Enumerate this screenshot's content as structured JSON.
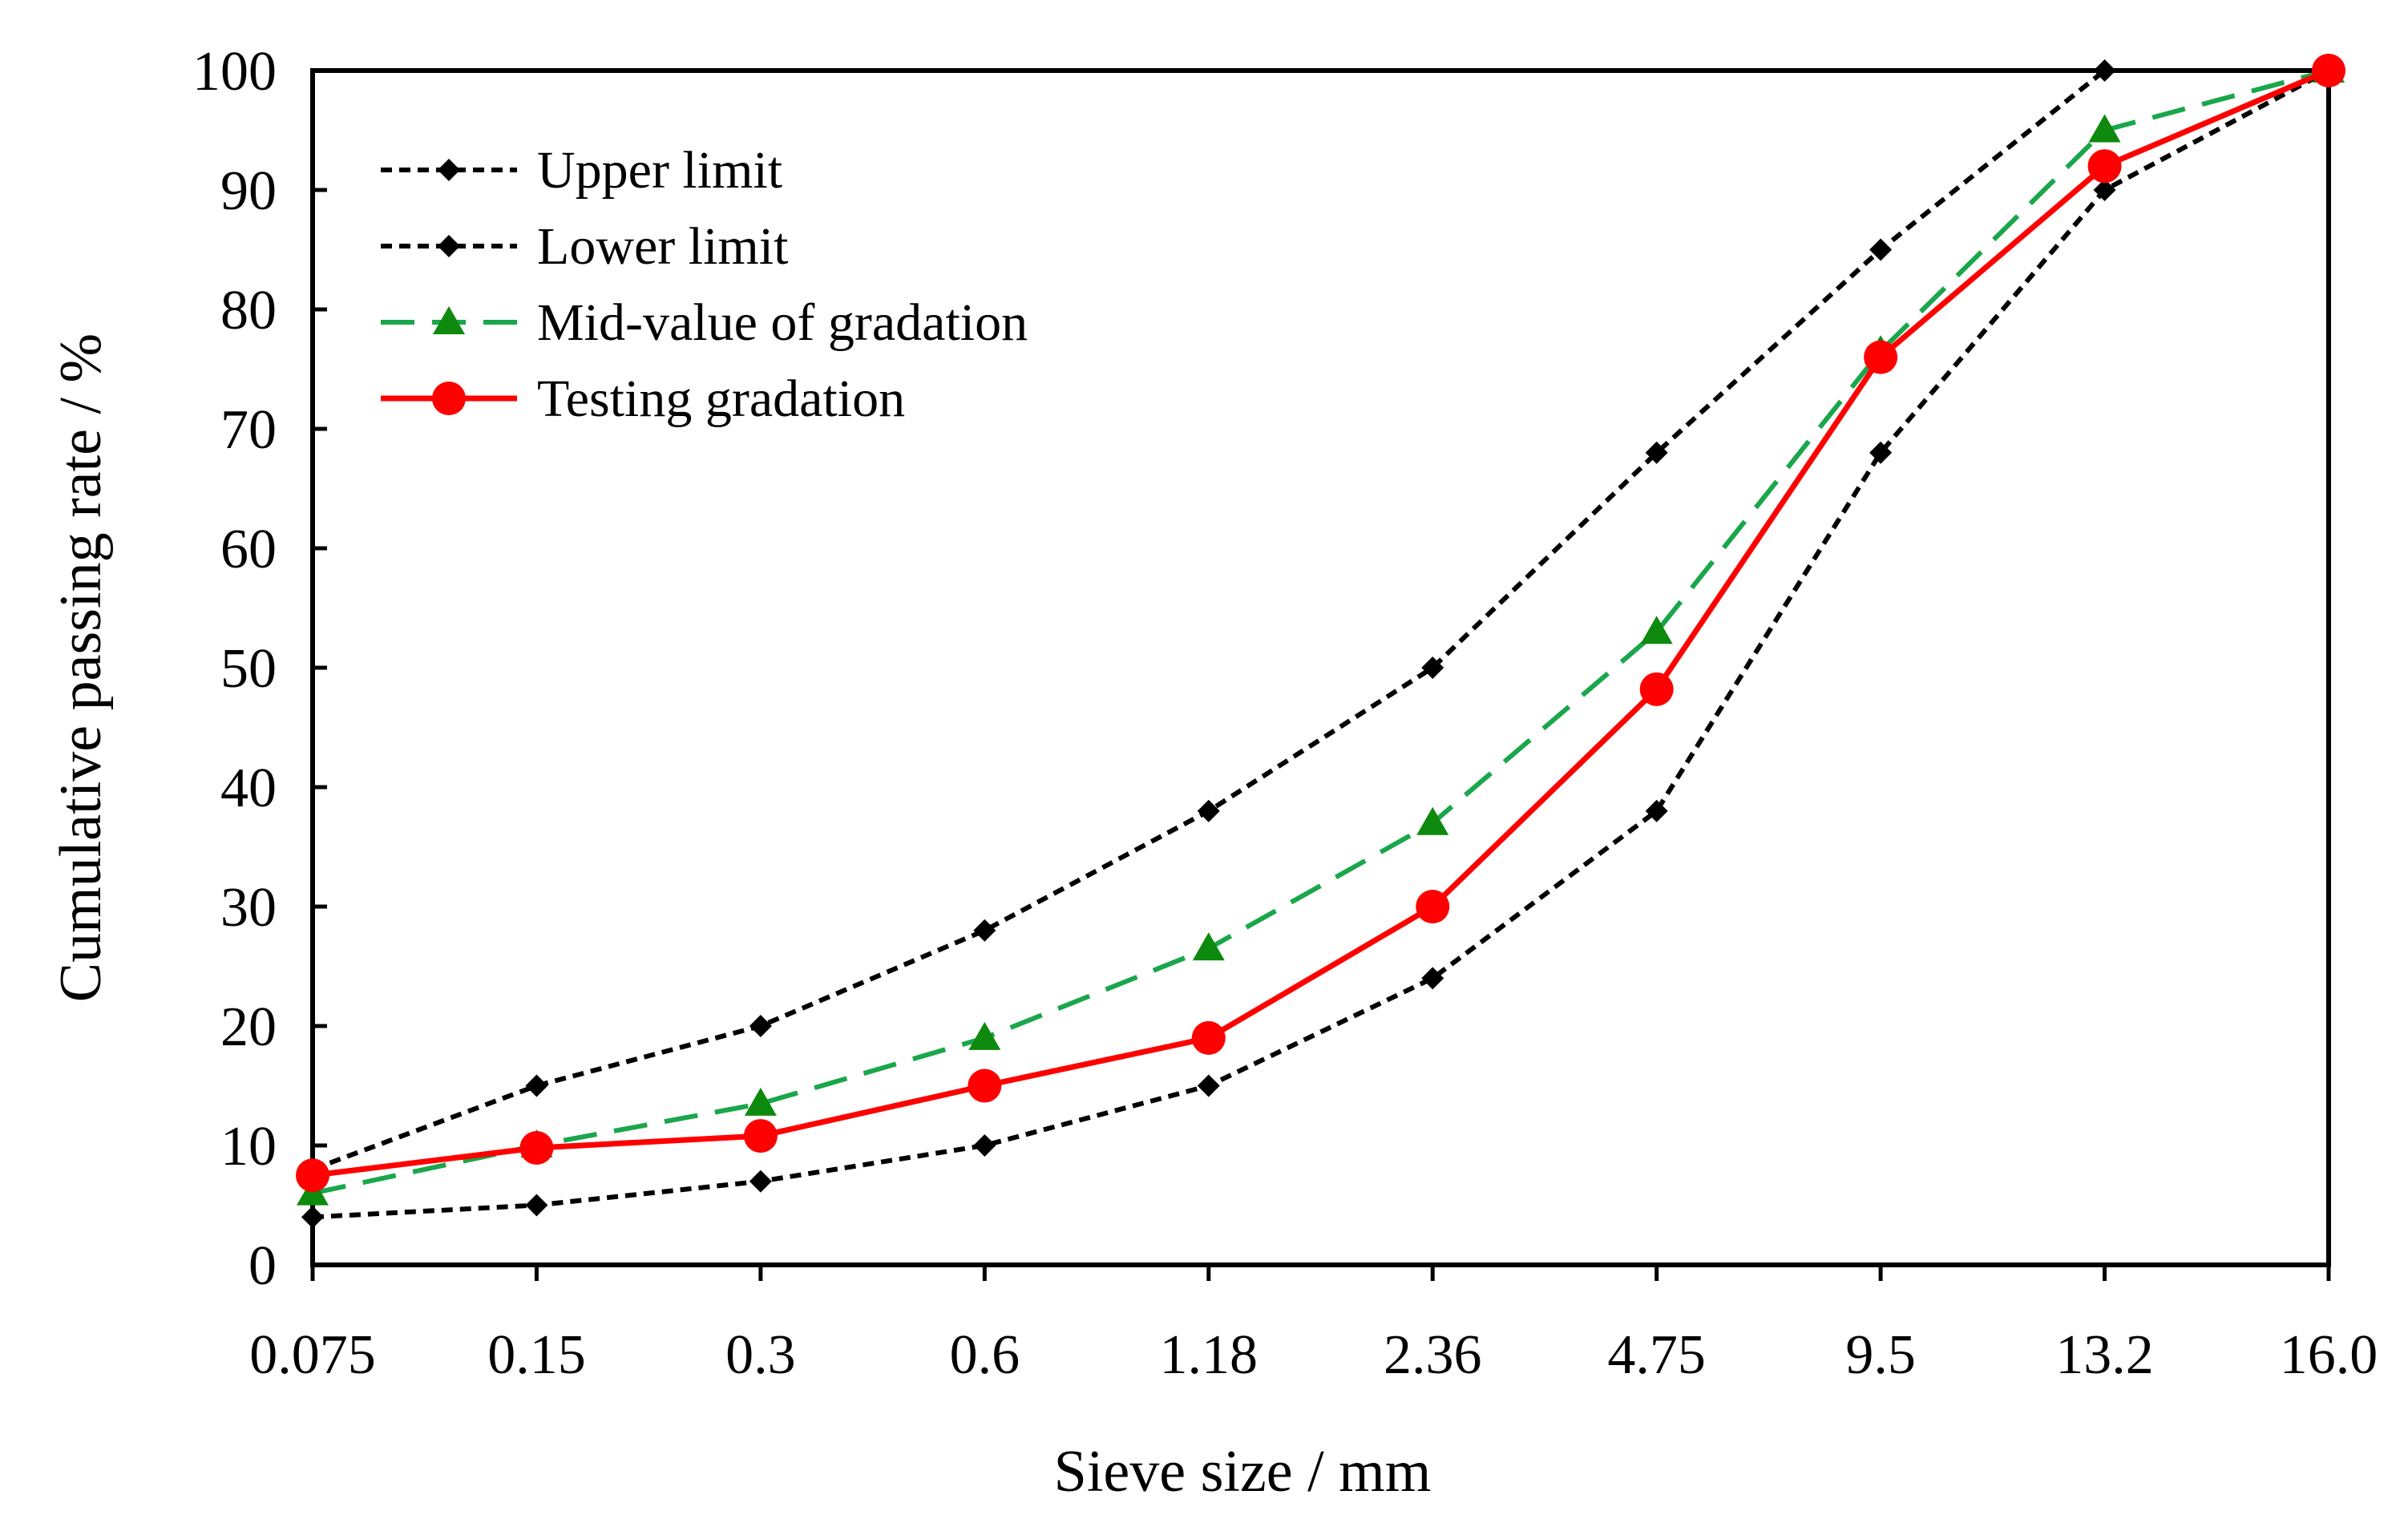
{
  "chart_data": {
    "type": "line",
    "title": "",
    "xlabel": "Sieve size / mm",
    "ylabel": "Cumulative passing rate / %",
    "categories": [
      "0.075",
      "0.15",
      "0.3",
      "0.6",
      "1.18",
      "2.36",
      "4.75",
      "9.5",
      "13.2",
      "16.0"
    ],
    "ylim": [
      0,
      100
    ],
    "yticks": [
      0,
      10,
      20,
      30,
      40,
      50,
      60,
      70,
      80,
      90,
      100
    ],
    "yticklabels": [
      "0",
      "10",
      "20",
      "30",
      "40",
      "50",
      "60",
      "70",
      "80",
      "90",
      "100"
    ],
    "grid": false,
    "legend_position": "top-left",
    "series": [
      {
        "name": "Upper limit",
        "values": [
          8,
          15,
          20,
          28,
          38,
          50,
          68,
          85,
          100,
          100
        ],
        "color": "#000000",
        "line": "dotted",
        "marker": "diamond"
      },
      {
        "name": "Lower limit",
        "values": [
          4,
          5,
          7,
          10,
          15,
          24,
          38,
          68,
          90,
          100
        ],
        "color": "#000000",
        "line": "dotted",
        "marker": "diamond"
      },
      {
        "name": "Mid-value of gradation",
        "values": [
          6,
          10,
          13.5,
          19,
          26.5,
          37,
          53,
          76.5,
          95,
          100
        ],
        "color": "#1aa64b",
        "marker_color": "#0d8a0d",
        "line": "dashed",
        "marker": "triangle"
      },
      {
        "name": "Testing gradation",
        "values": [
          7.5,
          9.8,
          10.8,
          15,
          19,
          30,
          48.2,
          76,
          92,
          100
        ],
        "color": "#ff0000",
        "line": "solid",
        "marker": "circle"
      }
    ]
  }
}
